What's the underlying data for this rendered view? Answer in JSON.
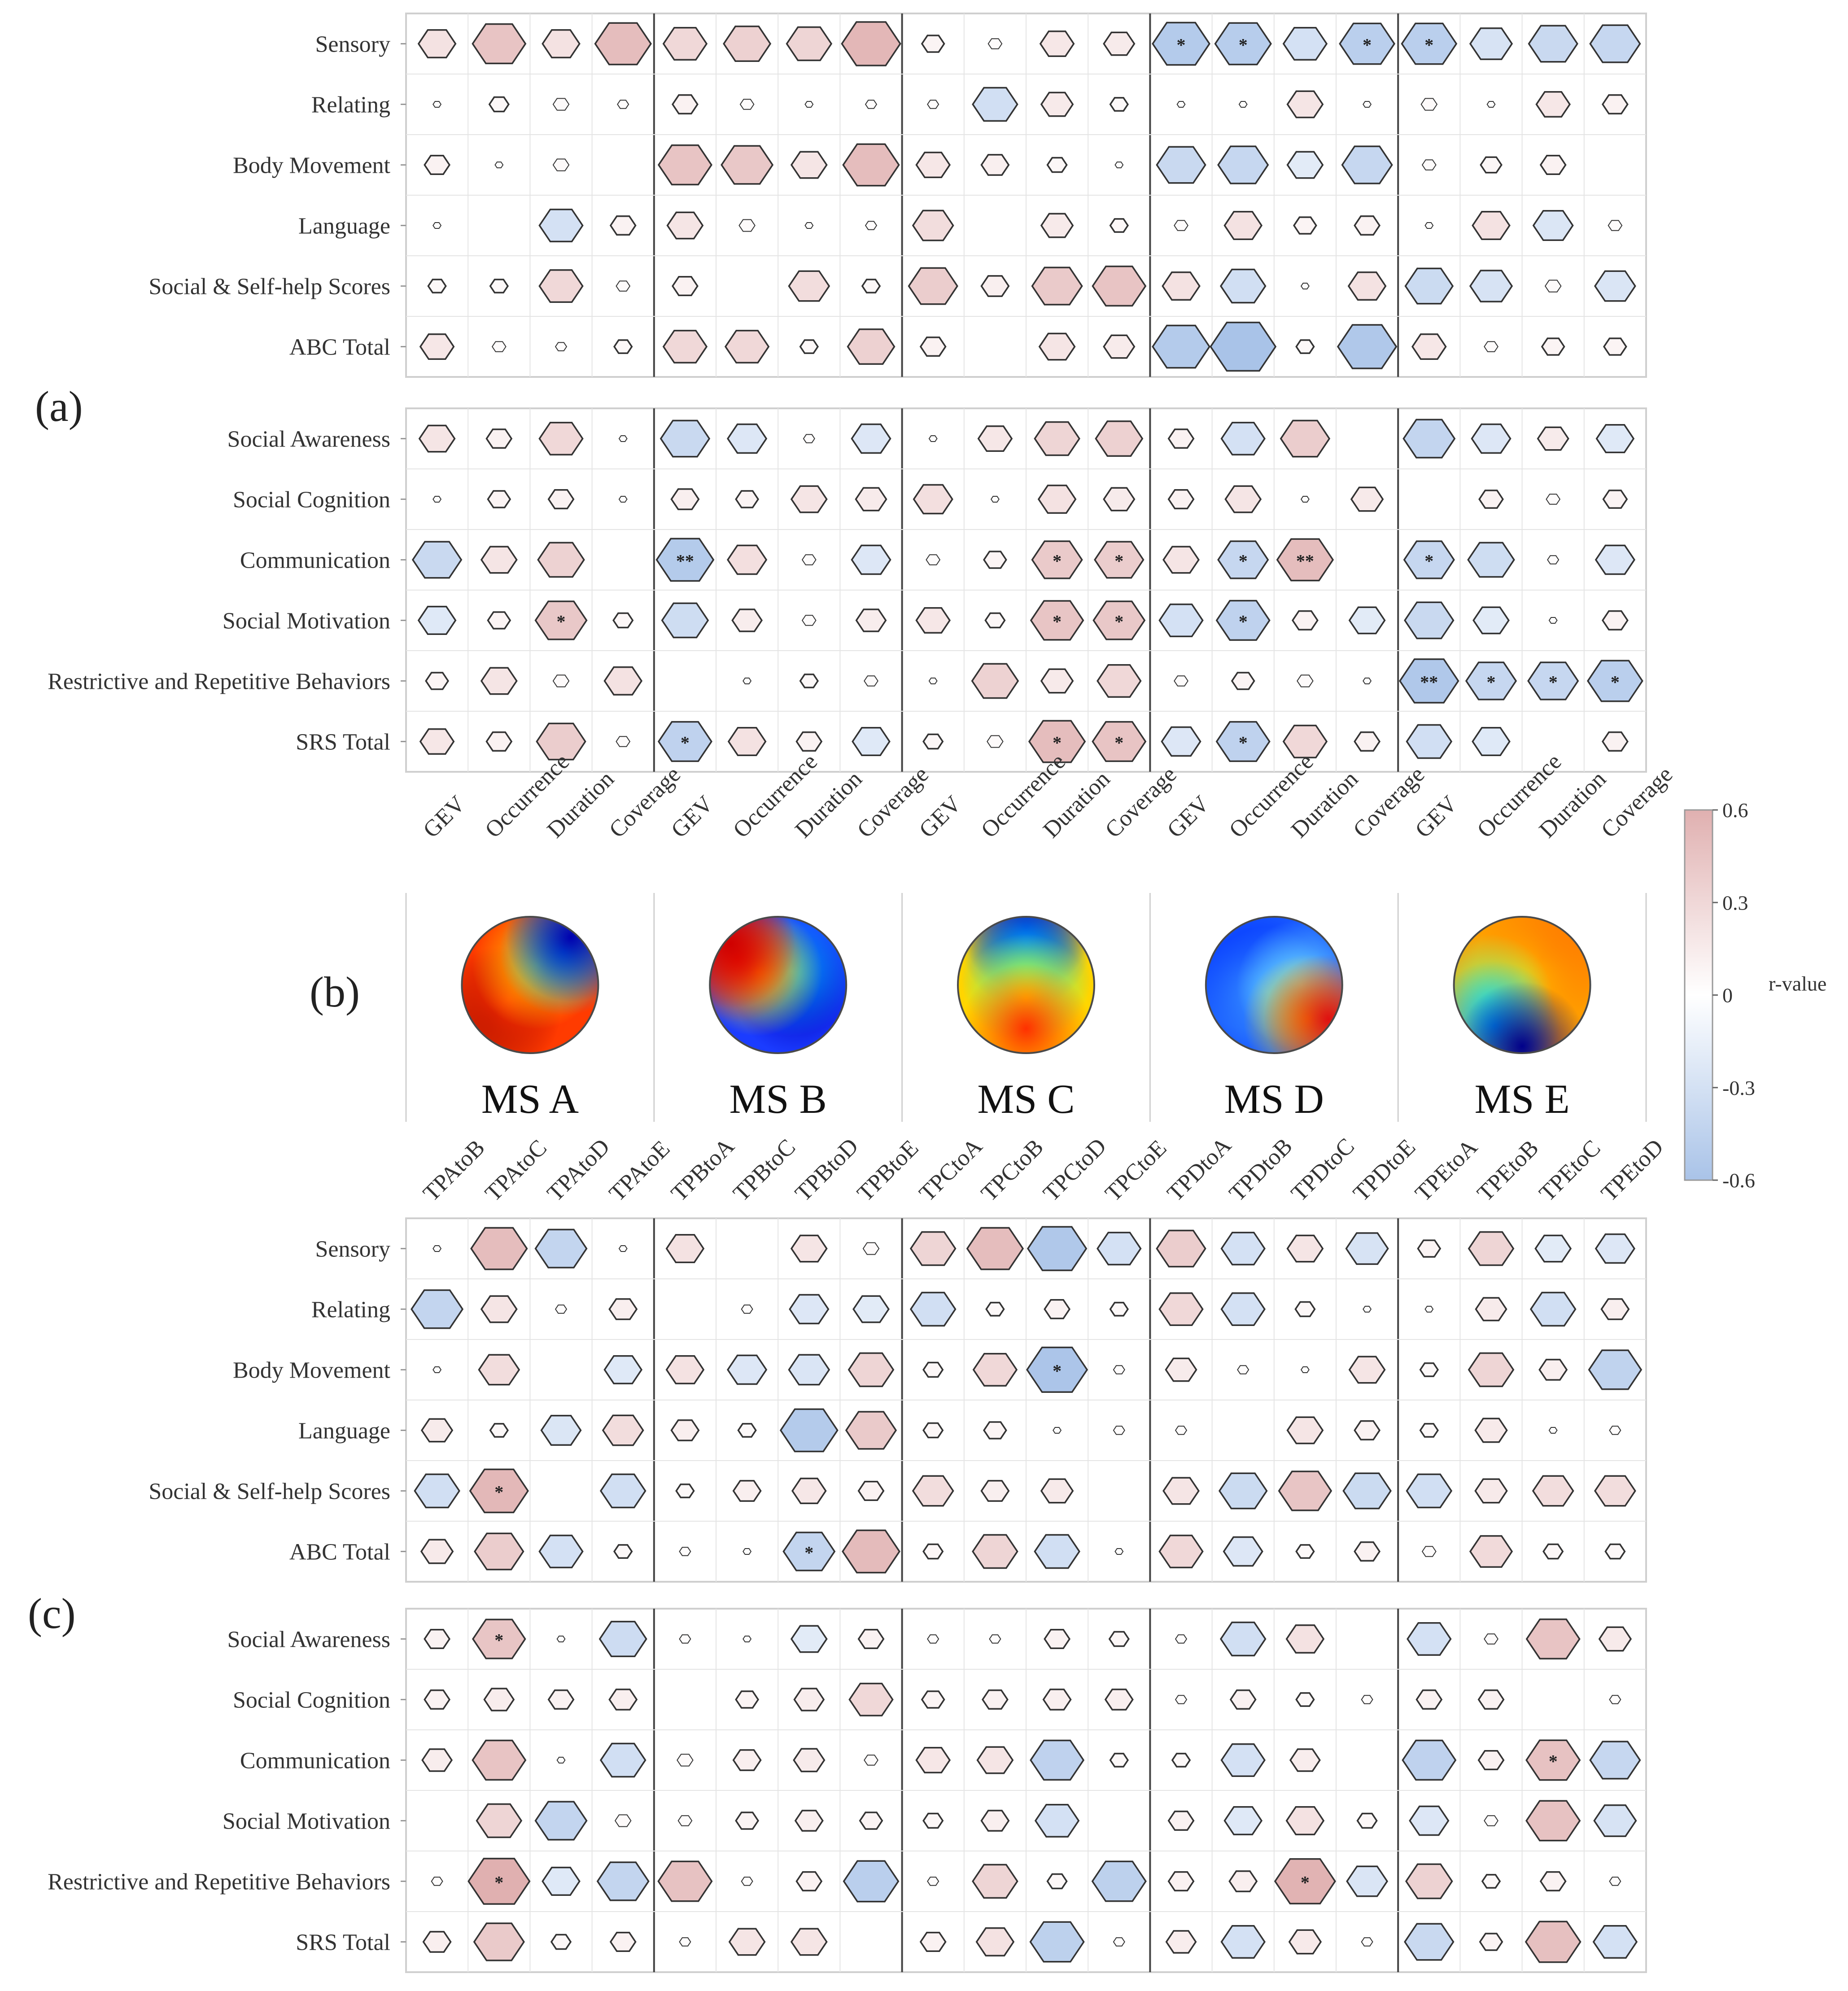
{
  "panels": {
    "a": "(a)",
    "b": "(b)",
    "c": "(c)"
  },
  "chart_data": {
    "type": "heatmap",
    "description_scale": "hexagon size and color encode Pearson r; * and ** mark significance",
    "colorbar": {
      "label": "r-value",
      "ticks": [
        "0.6",
        "0.3",
        "0",
        "-0.3",
        "-0.6"
      ],
      "range": [
        -0.6,
        0.6
      ],
      "color_pos": "#e0b0b0",
      "color_neg": "#a9c3e8"
    },
    "row_groups": {
      "abc": [
        "Sensory",
        "Relating",
        "Body  Movement",
        "Language",
        "Social & Self-help Scores",
        "ABC Total"
      ],
      "srs": [
        "Social Awareness",
        "Social Cognition",
        "Communication",
        "Social Motivation",
        "Restrictive and Repetitive Behaviors",
        "SRS Total"
      ]
    },
    "microstates": [
      "MS A",
      "MS B",
      "MS C",
      "MS D",
      "MS E"
    ],
    "metric_columns": [
      "GEV",
      "Occurrence",
      "Duration",
      "Coverage",
      "GEV",
      "Occurrence",
      "Duration",
      "Coverage",
      "GEV",
      "Occurrence",
      "Duration",
      "Coverage",
      "GEV",
      "Occurrence",
      "Duration",
      "Coverage",
      "GEV",
      "Occurrence",
      "Duration",
      "Coverage"
    ],
    "transition_columns": [
      "TPAtoB",
      "TPAtoC",
      "TPAtoD",
      "TPAtoE",
      "TPBtoA",
      "TPBtoC",
      "TPBtoD",
      "TPBtoE",
      "TPCtoA",
      "TPCtoB",
      "TPCtoD",
      "TPCtoE",
      "TPDtoA",
      "TPDtoB",
      "TPDtoC",
      "TPDtoE",
      "TPEtoA",
      "TPEtoB",
      "TPEtoC",
      "TPEtoD"
    ],
    "matrices": {
      "metrics_abc": [
        [
          0.22,
          0.45,
          0.22,
          0.5,
          0.3,
          0.35,
          0.32,
          0.55,
          0.08,
          0.03,
          0.18,
          0.15,
          -0.52,
          -0.5,
          -0.3,
          -0.48,
          -0.48,
          -0.28,
          -0.38,
          -0.4
        ],
        [
          0.01,
          0.06,
          0.04,
          0.02,
          0.1,
          0.03,
          0.01,
          0.02,
          0.02,
          -0.32,
          0.16,
          0.05,
          0.01,
          0.01,
          0.2,
          0.01,
          0.04,
          0.01,
          0.18,
          0.1
        ],
        [
          0.1,
          0.01,
          0.04,
          0.0,
          0.45,
          0.42,
          0.2,
          0.5,
          0.18,
          0.12,
          0.06,
          0.01,
          -0.38,
          -0.4,
          -0.2,
          -0.4,
          0.03,
          0.07,
          0.1,
          0.0
        ],
        [
          0.01,
          0.0,
          -0.3,
          0.1,
          0.2,
          0.04,
          0.01,
          0.02,
          0.26,
          0.0,
          0.16,
          0.05,
          0.03,
          0.22,
          0.08,
          0.1,
          0.01,
          0.22,
          -0.25,
          0.03
        ],
        [
          0.05,
          0.05,
          0.3,
          0.03,
          0.1,
          0.0,
          0.26,
          0.05,
          0.38,
          0.12,
          0.4,
          0.45,
          0.22,
          -0.32,
          0.01,
          0.22,
          -0.36,
          -0.28,
          0.04,
          -0.26
        ],
        [
          0.18,
          0.03,
          0.02,
          0.05,
          0.3,
          0.3,
          0.05,
          0.35,
          0.1,
          0.0,
          0.2,
          0.15,
          -0.52,
          -0.68,
          0.05,
          -0.55,
          0.18,
          0.03,
          0.08,
          0.08
        ]
      ],
      "metrics_srs": [
        [
          0.2,
          0.1,
          0.3,
          0.01,
          -0.38,
          -0.24,
          0.02,
          -0.24,
          0.01,
          0.18,
          0.32,
          0.35,
          0.1,
          -0.3,
          0.38,
          0.0,
          -0.42,
          -0.24,
          0.15,
          -0.22
        ],
        [
          0.01,
          0.08,
          0.1,
          0.01,
          0.12,
          0.08,
          0.2,
          0.15,
          0.24,
          0.01,
          0.22,
          0.15,
          0.1,
          0.2,
          0.01,
          0.16,
          0.0,
          0.09,
          0.03,
          0.09
        ],
        [
          -0.38,
          0.2,
          0.34,
          0.0,
          -0.52,
          0.24,
          0.03,
          -0.24,
          0.03,
          0.08,
          0.4,
          0.38,
          0.2,
          -0.4,
          0.5,
          0.0,
          -0.4,
          -0.34,
          0.02,
          -0.24
        ],
        [
          -0.22,
          0.08,
          0.42,
          0.06,
          -0.34,
          0.14,
          0.03,
          0.14,
          0.18,
          0.06,
          0.44,
          0.42,
          -0.3,
          -0.45,
          0.1,
          -0.2,
          -0.38,
          -0.2,
          0.01,
          0.1
        ],
        [
          0.08,
          0.2,
          0.04,
          0.22,
          0.0,
          0.01,
          0.05,
          0.03,
          0.01,
          0.34,
          0.16,
          0.3,
          0.03,
          0.08,
          0.04,
          0.01,
          -0.55,
          -0.4,
          -0.4,
          -0.48
        ],
        [
          0.18,
          0.1,
          0.38,
          0.03,
          -0.45,
          0.22,
          0.1,
          -0.22,
          0.06,
          0.04,
          0.5,
          0.45,
          -0.24,
          -0.45,
          0.3,
          0.1,
          -0.32,
          -0.22,
          0.0,
          0.1
        ]
      ],
      "transitions_abc": [
        [
          0.01,
          0.5,
          -0.42,
          0.01,
          0.22,
          0.0,
          0.2,
          0.04,
          0.32,
          0.5,
          -0.55,
          -0.3,
          0.38,
          -0.3,
          0.2,
          -0.28,
          0.08,
          0.32,
          -0.2,
          -0.24
        ],
        [
          -0.42,
          0.2,
          0.02,
          0.12,
          0.0,
          0.02,
          -0.24,
          -0.2,
          -0.32,
          0.05,
          0.1,
          0.05,
          0.3,
          -0.3,
          0.06,
          0.01,
          0.01,
          0.15,
          -0.32,
          0.12
        ],
        [
          0.01,
          0.26,
          0.0,
          -0.22,
          0.22,
          -0.24,
          -0.26,
          0.32,
          0.06,
          0.3,
          -0.58,
          0.02,
          0.15,
          0.02,
          0.01,
          0.2,
          0.05,
          0.32,
          0.12,
          -0.44
        ],
        [
          0.15,
          0.05,
          -0.25,
          0.26,
          0.12,
          0.05,
          -0.52,
          0.4,
          0.06,
          0.08,
          0.01,
          0.02,
          0.02,
          0.0,
          0.2,
          0.1,
          0.05,
          0.16,
          0.01,
          0.02
        ],
        [
          -0.32,
          0.54,
          0.0,
          -0.32,
          0.05,
          0.12,
          0.18,
          0.1,
          0.26,
          0.12,
          0.16,
          0.0,
          0.2,
          -0.36,
          0.44,
          -0.36,
          -0.32,
          0.16,
          0.26,
          0.26
        ],
        [
          0.16,
          0.38,
          -0.3,
          0.05,
          0.02,
          0.01,
          -0.42,
          0.52,
          0.06,
          0.32,
          -0.32,
          0.01,
          0.3,
          -0.24,
          0.05,
          0.1,
          0.03,
          0.28,
          0.06,
          0.06
        ]
      ],
      "transitions_srs": [
        [
          0.1,
          0.44,
          0.01,
          -0.35,
          0.02,
          0.01,
          -0.2,
          0.1,
          0.02,
          0.02,
          0.1,
          0.06,
          0.02,
          -0.32,
          0.22,
          0.0,
          -0.3,
          0.03,
          0.45,
          0.16
        ],
        [
          0.1,
          0.14,
          0.1,
          0.12,
          0.0,
          0.08,
          0.14,
          0.3,
          0.08,
          0.1,
          0.12,
          0.12,
          0.02,
          0.1,
          0.05,
          0.02,
          0.1,
          0.1,
          0.0,
          0.02
        ],
        [
          0.14,
          0.45,
          0.01,
          -0.32,
          0.04,
          0.12,
          0.15,
          0.03,
          0.18,
          0.2,
          -0.45,
          0.05,
          0.05,
          -0.3,
          0.14,
          0.0,
          -0.45,
          0.1,
          0.46,
          -0.4
        ],
        [
          0.0,
          0.32,
          -0.42,
          0.04,
          0.03,
          0.08,
          0.12,
          0.08,
          0.06,
          0.12,
          -0.3,
          0.0,
          0.1,
          -0.22,
          0.22,
          0.06,
          -0.24,
          0.03,
          0.46,
          -0.28
        ],
        [
          0.02,
          0.6,
          -0.22,
          -0.42,
          0.46,
          0.02,
          0.1,
          -0.48,
          0.02,
          0.32,
          0.06,
          -0.46,
          0.1,
          0.12,
          0.58,
          -0.26,
          0.34,
          0.05,
          0.1,
          0.02
        ],
        [
          0.12,
          0.4,
          0.06,
          0.1,
          0.02,
          0.2,
          0.2,
          0.0,
          0.1,
          0.22,
          -0.46,
          0.02,
          0.14,
          -0.3,
          0.16,
          0.02,
          -0.38,
          0.08,
          0.48,
          -0.3
        ]
      ]
    },
    "significance": {
      "metrics_abc": [
        [
          0,
          0
        ],
        [
          0,
          0
        ],
        [
          0,
          0
        ]
      ],
      "marks": [
        {
          "matrix": "metrics_abc",
          "row": 0,
          "col": 12,
          "label": "*"
        },
        {
          "matrix": "metrics_abc",
          "row": 0,
          "col": 13,
          "label": "*"
        },
        {
          "matrix": "metrics_abc",
          "row": 0,
          "col": 15,
          "label": "*"
        },
        {
          "matrix": "metrics_abc",
          "row": 0,
          "col": 16,
          "label": "*"
        },
        {
          "matrix": "metrics_srs",
          "row": 2,
          "col": 4,
          "label": "**"
        },
        {
          "matrix": "metrics_srs",
          "row": 2,
          "col": 10,
          "label": "*"
        },
        {
          "matrix": "metrics_srs",
          "row": 2,
          "col": 11,
          "label": "*"
        },
        {
          "matrix": "metrics_srs",
          "row": 2,
          "col": 13,
          "label": "*"
        },
        {
          "matrix": "metrics_srs",
          "row": 2,
          "col": 14,
          "label": "**"
        },
        {
          "matrix": "metrics_srs",
          "row": 2,
          "col": 16,
          "label": "*"
        },
        {
          "matrix": "metrics_srs",
          "row": 3,
          "col": 2,
          "label": "*"
        },
        {
          "matrix": "metrics_srs",
          "row": 3,
          "col": 10,
          "label": "*"
        },
        {
          "matrix": "metrics_srs",
          "row": 3,
          "col": 11,
          "label": "*"
        },
        {
          "matrix": "metrics_srs",
          "row": 3,
          "col": 13,
          "label": "*"
        },
        {
          "matrix": "metrics_srs",
          "row": 4,
          "col": 16,
          "label": "**"
        },
        {
          "matrix": "metrics_srs",
          "row": 4,
          "col": 17,
          "label": "*"
        },
        {
          "matrix": "metrics_srs",
          "row": 4,
          "col": 18,
          "label": "*"
        },
        {
          "matrix": "metrics_srs",
          "row": 4,
          "col": 19,
          "label": "*"
        },
        {
          "matrix": "metrics_srs",
          "row": 5,
          "col": 4,
          "label": "*"
        },
        {
          "matrix": "metrics_srs",
          "row": 5,
          "col": 10,
          "label": "*"
        },
        {
          "matrix": "metrics_srs",
          "row": 5,
          "col": 11,
          "label": "*"
        },
        {
          "matrix": "metrics_srs",
          "row": 5,
          "col": 13,
          "label": "*"
        },
        {
          "matrix": "transitions_abc",
          "row": 2,
          "col": 10,
          "label": "*"
        },
        {
          "matrix": "transitions_abc",
          "row": 4,
          "col": 1,
          "label": "*"
        },
        {
          "matrix": "transitions_abc",
          "row": 5,
          "col": 6,
          "label": "*"
        },
        {
          "matrix": "transitions_srs",
          "row": 0,
          "col": 1,
          "label": "*"
        },
        {
          "matrix": "transitions_srs",
          "row": 2,
          "col": 18,
          "label": "*"
        },
        {
          "matrix": "transitions_srs",
          "row": 4,
          "col": 1,
          "label": "*"
        },
        {
          "matrix": "transitions_srs",
          "row": 4,
          "col": 14,
          "label": "*"
        }
      ]
    }
  }
}
